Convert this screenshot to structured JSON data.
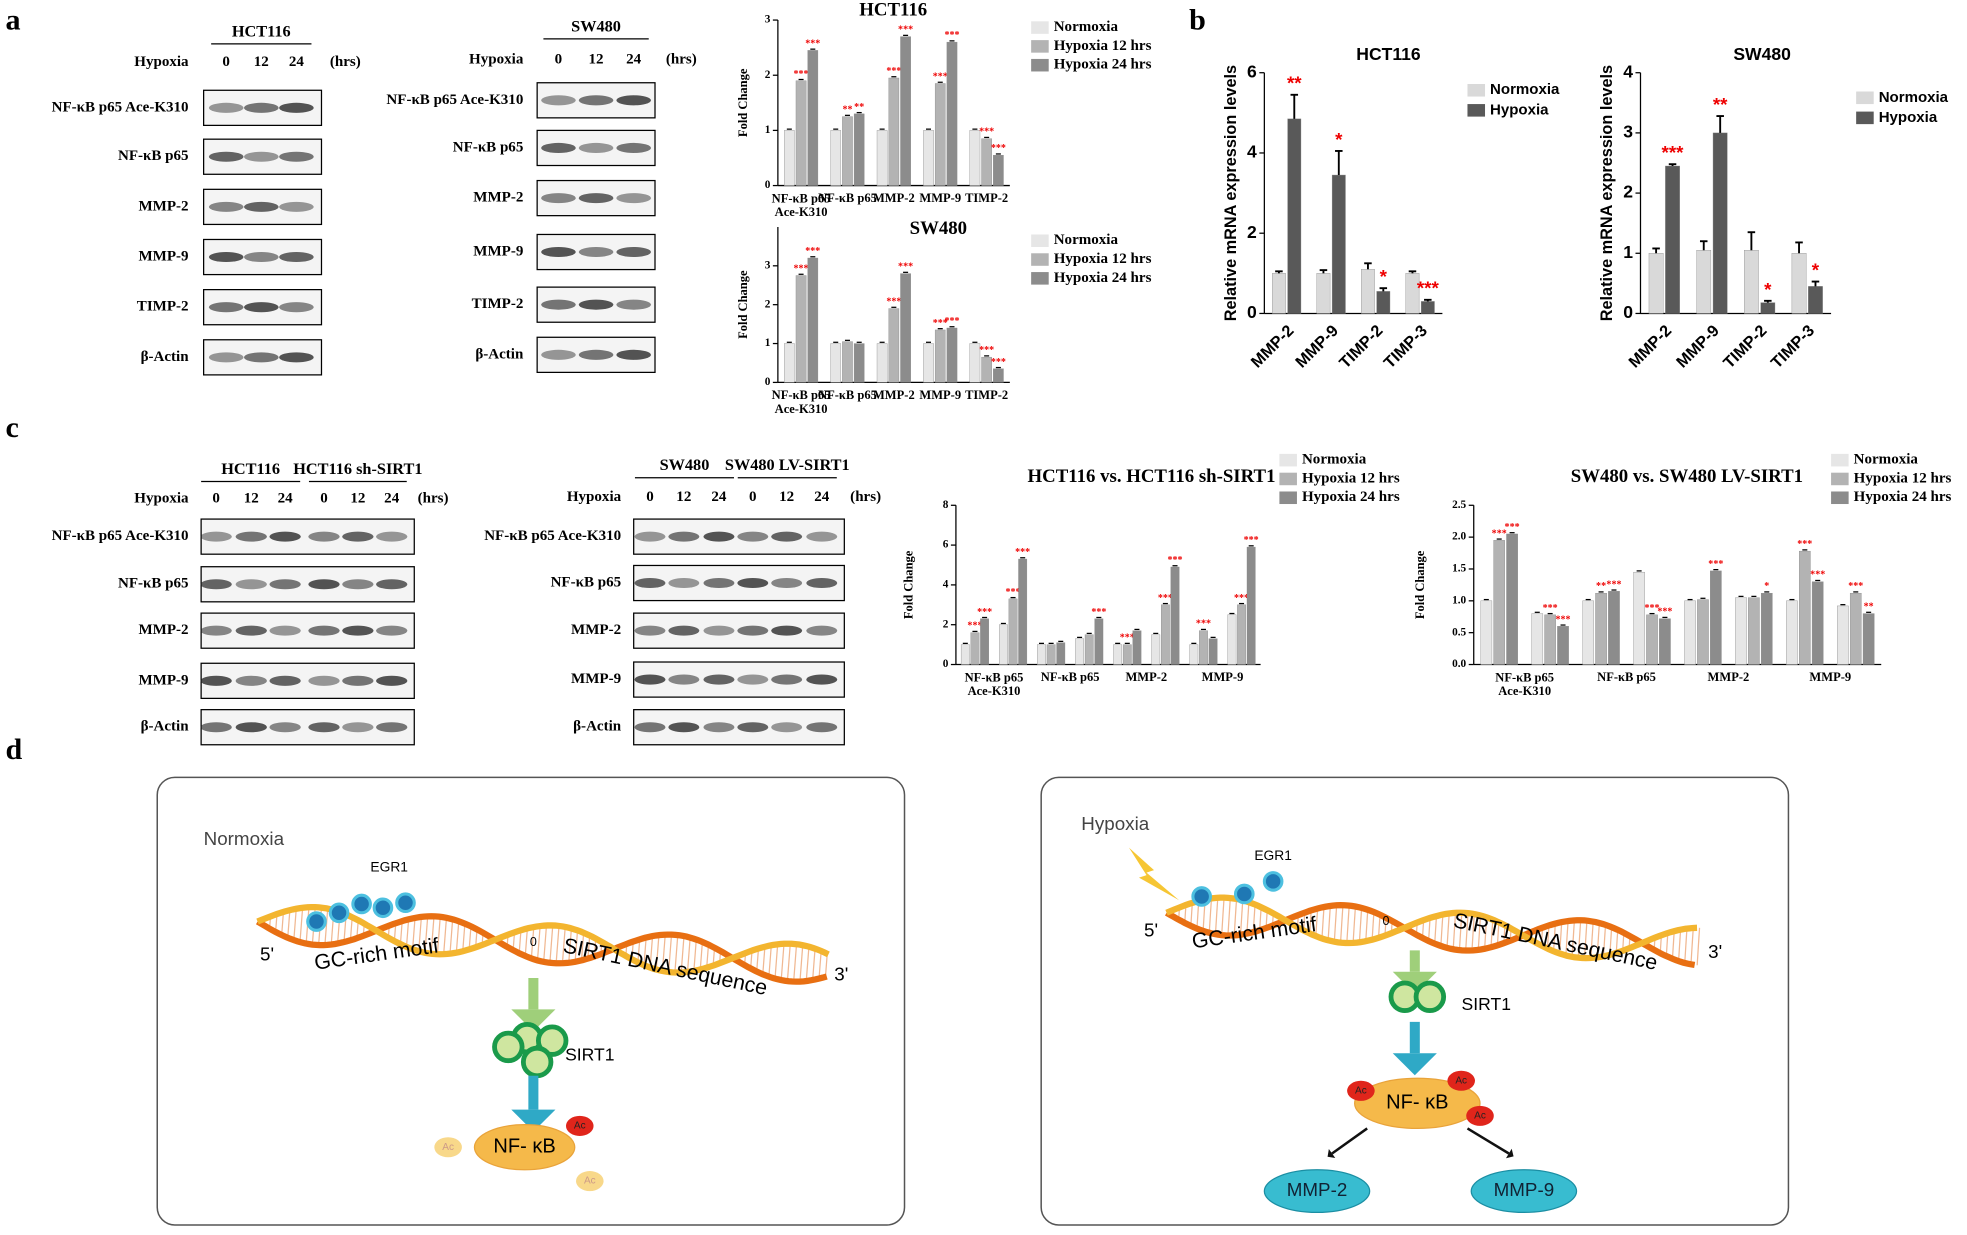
{
  "panel_labels": [
    "a",
    "b",
    "c",
    "d"
  ],
  "blots": [
    {
      "headers": [
        "HCT116"
      ],
      "treatment": "Hypoxia",
      "times": [
        "0",
        "12",
        "24"
      ],
      "unit": "(hrs)",
      "rows": [
        "NF-κB p65 Ace-K310",
        "NF-κB p65",
        "MMP-2",
        "MMP-9",
        "TIMP-2",
        "β-Actin"
      ]
    },
    {
      "headers": [
        "SW480"
      ],
      "treatment": "Hypoxia",
      "times": [
        "0",
        "12",
        "24"
      ],
      "unit": "(hrs)",
      "rows": [
        "NF-κB p65 Ace-K310",
        "NF-κB p65",
        "MMP-2",
        "MMP-9",
        "TIMP-2",
        "β-Actin"
      ]
    },
    {
      "headers": [
        "HCT116",
        "HCT116 sh-SIRT1"
      ],
      "treatment": "Hypoxia",
      "times": [
        "0",
        "12",
        "24",
        "0",
        "12",
        "24"
      ],
      "unit": "(hrs)",
      "rows": [
        "NF-κB p65 Ace-K310",
        "NF-κB p65",
        "MMP-2",
        "MMP-9",
        "β-Actin"
      ]
    },
    {
      "headers": [
        "SW480",
        "SW480 LV-SIRT1"
      ],
      "treatment": "Hypoxia",
      "times": [
        "0",
        "12",
        "24",
        "0",
        "12",
        "24"
      ],
      "unit": "(hrs)",
      "rows": [
        "NF-κB p65 Ace-K310",
        "NF-κB p65",
        "MMP-2",
        "MMP-9",
        "β-Actin"
      ]
    }
  ],
  "chart_data": [
    {
      "type": "bar",
      "title": "HCT116",
      "y_label": "Fold Change",
      "categories": [
        "NF-κB p65\nAce-K310",
        "NF-κB p65",
        "MMP-2",
        "MMP-9",
        "TIMP-2"
      ],
      "ylim": [
        0,
        3
      ],
      "yticks": [
        0,
        1,
        2,
        3
      ],
      "series": [
        {
          "name": "Normoxia",
          "color": "#e6e6e6",
          "values": [
            1,
            1,
            1,
            1,
            1
          ]
        },
        {
          "name": "Hypoxia 12 hrs",
          "color": "#b3b3b3",
          "values": [
            1.9,
            1.25,
            1.95,
            1.85,
            0.85
          ],
          "stars": [
            "***",
            "**",
            "***",
            "***",
            "***"
          ]
        },
        {
          "name": "Hypoxia 24 hrs",
          "color": "#8c8c8c",
          "values": [
            2.45,
            1.3,
            2.7,
            2.6,
            0.55
          ],
          "stars": [
            "***",
            "**",
            "***",
            "***",
            "***"
          ]
        }
      ]
    },
    {
      "type": "bar",
      "title": "SW480",
      "y_label": "Fold Change",
      "categories": [
        "NF-κB p65\nAce-K310",
        "NF-κB p65",
        "MMP-2",
        "MMP-9",
        "TIMP-2"
      ],
      "ylim": [
        0,
        4
      ],
      "yticks": [
        0,
        1,
        2,
        3
      ],
      "series": [
        {
          "name": "Normoxia",
          "color": "#e6e6e6",
          "values": [
            1,
            1,
            1,
            1,
            1
          ]
        },
        {
          "name": "Hypoxia 12 hrs",
          "color": "#b3b3b3",
          "values": [
            2.75,
            1.05,
            1.9,
            1.35,
            0.65
          ],
          "stars": [
            "***",
            null,
            "***",
            "***",
            "***"
          ]
        },
        {
          "name": "Hypoxia 24 hrs",
          "color": "#8c8c8c",
          "values": [
            3.2,
            1.0,
            2.8,
            1.4,
            0.35
          ],
          "stars": [
            "***",
            null,
            "***",
            "***",
            "***"
          ]
        }
      ]
    },
    {
      "type": "bar",
      "title": "HCT116",
      "y_label": "Relative mRNA expression levels",
      "categories": [
        "MMP-2",
        "MMP-9",
        "TIMP-2",
        "TIMP-3"
      ],
      "ylim": [
        0,
        6
      ],
      "yticks": [
        0,
        2,
        4,
        6
      ],
      "series": [
        {
          "name": "Normoxia",
          "color": "#d9d9d9",
          "values": [
            1,
            1,
            1.1,
            1.0
          ],
          "errors": [
            0.05,
            0.08,
            0.15,
            0.05
          ]
        },
        {
          "name": "Hypoxia",
          "color": "#595959",
          "values": [
            4.85,
            3.45,
            0.55,
            0.3
          ],
          "errors": [
            0.6,
            0.6,
            0.08,
            0.04
          ],
          "stars": [
            "**",
            "*",
            "*",
            "***"
          ]
        }
      ]
    },
    {
      "type": "bar",
      "title": "SW480",
      "y_label": "Relative mRNA expression levels",
      "categories": [
        "MMP-2",
        "MMP-9",
        "TIMP-2",
        "TIMP-3"
      ],
      "ylim": [
        0,
        4
      ],
      "yticks": [
        0,
        1,
        2,
        3,
        4
      ],
      "series": [
        {
          "name": "Normoxia",
          "color": "#d9d9d9",
          "values": [
            1,
            1.05,
            1.05,
            1.0
          ],
          "errors": [
            0.08,
            0.15,
            0.3,
            0.18
          ]
        },
        {
          "name": "Hypoxia",
          "color": "#595959",
          "values": [
            2.45,
            3.0,
            0.18,
            0.45
          ],
          "errors": [
            0.03,
            0.28,
            0.03,
            0.08
          ],
          "stars": [
            "***",
            "**",
            "*",
            "*"
          ]
        }
      ]
    },
    {
      "type": "bar",
      "title": "HCT116 vs. HCT116 sh-SIRT1",
      "y_label": "Fold Change",
      "categories": [
        "NF-κB p65\nAce-K310",
        null,
        "NF-κB p65",
        null,
        "MMP-2",
        null,
        "MMP-9",
        null
      ],
      "ylim": [
        0,
        8
      ],
      "yticks": [
        0,
        2,
        4,
        6,
        8
      ],
      "series": [
        {
          "name": "Normoxia",
          "color": "#e6e6e6",
          "values": [
            1.0,
            2.0,
            1.0,
            1.3,
            1.0,
            1.5,
            1.0,
            2.5
          ]
        },
        {
          "name": "Hypoxia 12 hrs",
          "color": "#b3b3b3",
          "values": [
            1.6,
            3.3,
            1.0,
            1.5,
            1.0,
            3.0,
            1.7,
            3.0
          ],
          "stars": [
            "***",
            "***",
            null,
            null,
            "***",
            "***",
            "***",
            "***"
          ]
        },
        {
          "name": "Hypoxia 24 hrs",
          "color": "#8c8c8c",
          "values": [
            2.3,
            5.3,
            1.1,
            2.3,
            1.7,
            4.9,
            1.3,
            5.9
          ],
          "stars": [
            "***",
            "***",
            null,
            "***",
            null,
            "***",
            null,
            "***"
          ]
        }
      ]
    },
    {
      "type": "bar",
      "title": "SW480 vs. SW480 LV-SIRT1",
      "y_label": "Fold Change",
      "categories": [
        "NF-κB p65\nAce-K310",
        null,
        "NF-κB p65",
        null,
        "MMP-2",
        null,
        "MMP-9",
        null
      ],
      "ylim": [
        0,
        2.5
      ],
      "yticks": [
        {
          "value": 0,
          "label": "0.0"
        },
        0.5,
        {
          "value": 1,
          "label": "1.0"
        },
        1.5,
        {
          "value": 2,
          "label": "2.0"
        },
        2.5
      ],
      "series": [
        {
          "name": "Normoxia",
          "color": "#e6e6e6",
          "values": [
            1.0,
            0.8,
            1.0,
            1.45,
            1.0,
            1.05,
            1.0,
            0.92
          ]
        },
        {
          "name": "Hypoxia 12 hrs",
          "color": "#b3b3b3",
          "values": [
            1.95,
            0.78,
            1.12,
            0.78,
            1.02,
            1.05,
            1.78,
            1.12
          ],
          "stars": [
            "***",
            "***",
            "**",
            "***",
            null,
            null,
            "***",
            "***"
          ]
        },
        {
          "name": "Hypoxia 24 hrs",
          "color": "#8c8c8c",
          "values": [
            2.05,
            0.6,
            1.15,
            0.72,
            1.47,
            1.12,
            1.3,
            0.8
          ],
          "stars": [
            "***",
            "***",
            "***",
            "***",
            "***",
            "*",
            "***",
            "**"
          ]
        }
      ]
    }
  ],
  "diagrams": [
    {
      "condition": "Normoxia",
      "factor": "EGR1",
      "five": "5'",
      "motif": "GC-rich motif",
      "position": "0",
      "gene": "SIRT1 DNA sequence",
      "three": "3'",
      "protein": "SIRT1",
      "target": "NF- κB",
      "ac": [
        "Ac",
        "Ac",
        "Ac"
      ]
    },
    {
      "condition": "Hypoxia",
      "factor": "EGR1",
      "five": "5'",
      "motif": "GC-rich motif",
      "position": "0",
      "gene": "SIRT1 DNA sequence",
      "three": "3'",
      "protein": "SIRT1",
      "target": "NF- κB",
      "ac": [
        "Ac",
        "Ac",
        "Ac"
      ],
      "products": [
        "MMP-2",
        "MMP-9"
      ]
    }
  ]
}
